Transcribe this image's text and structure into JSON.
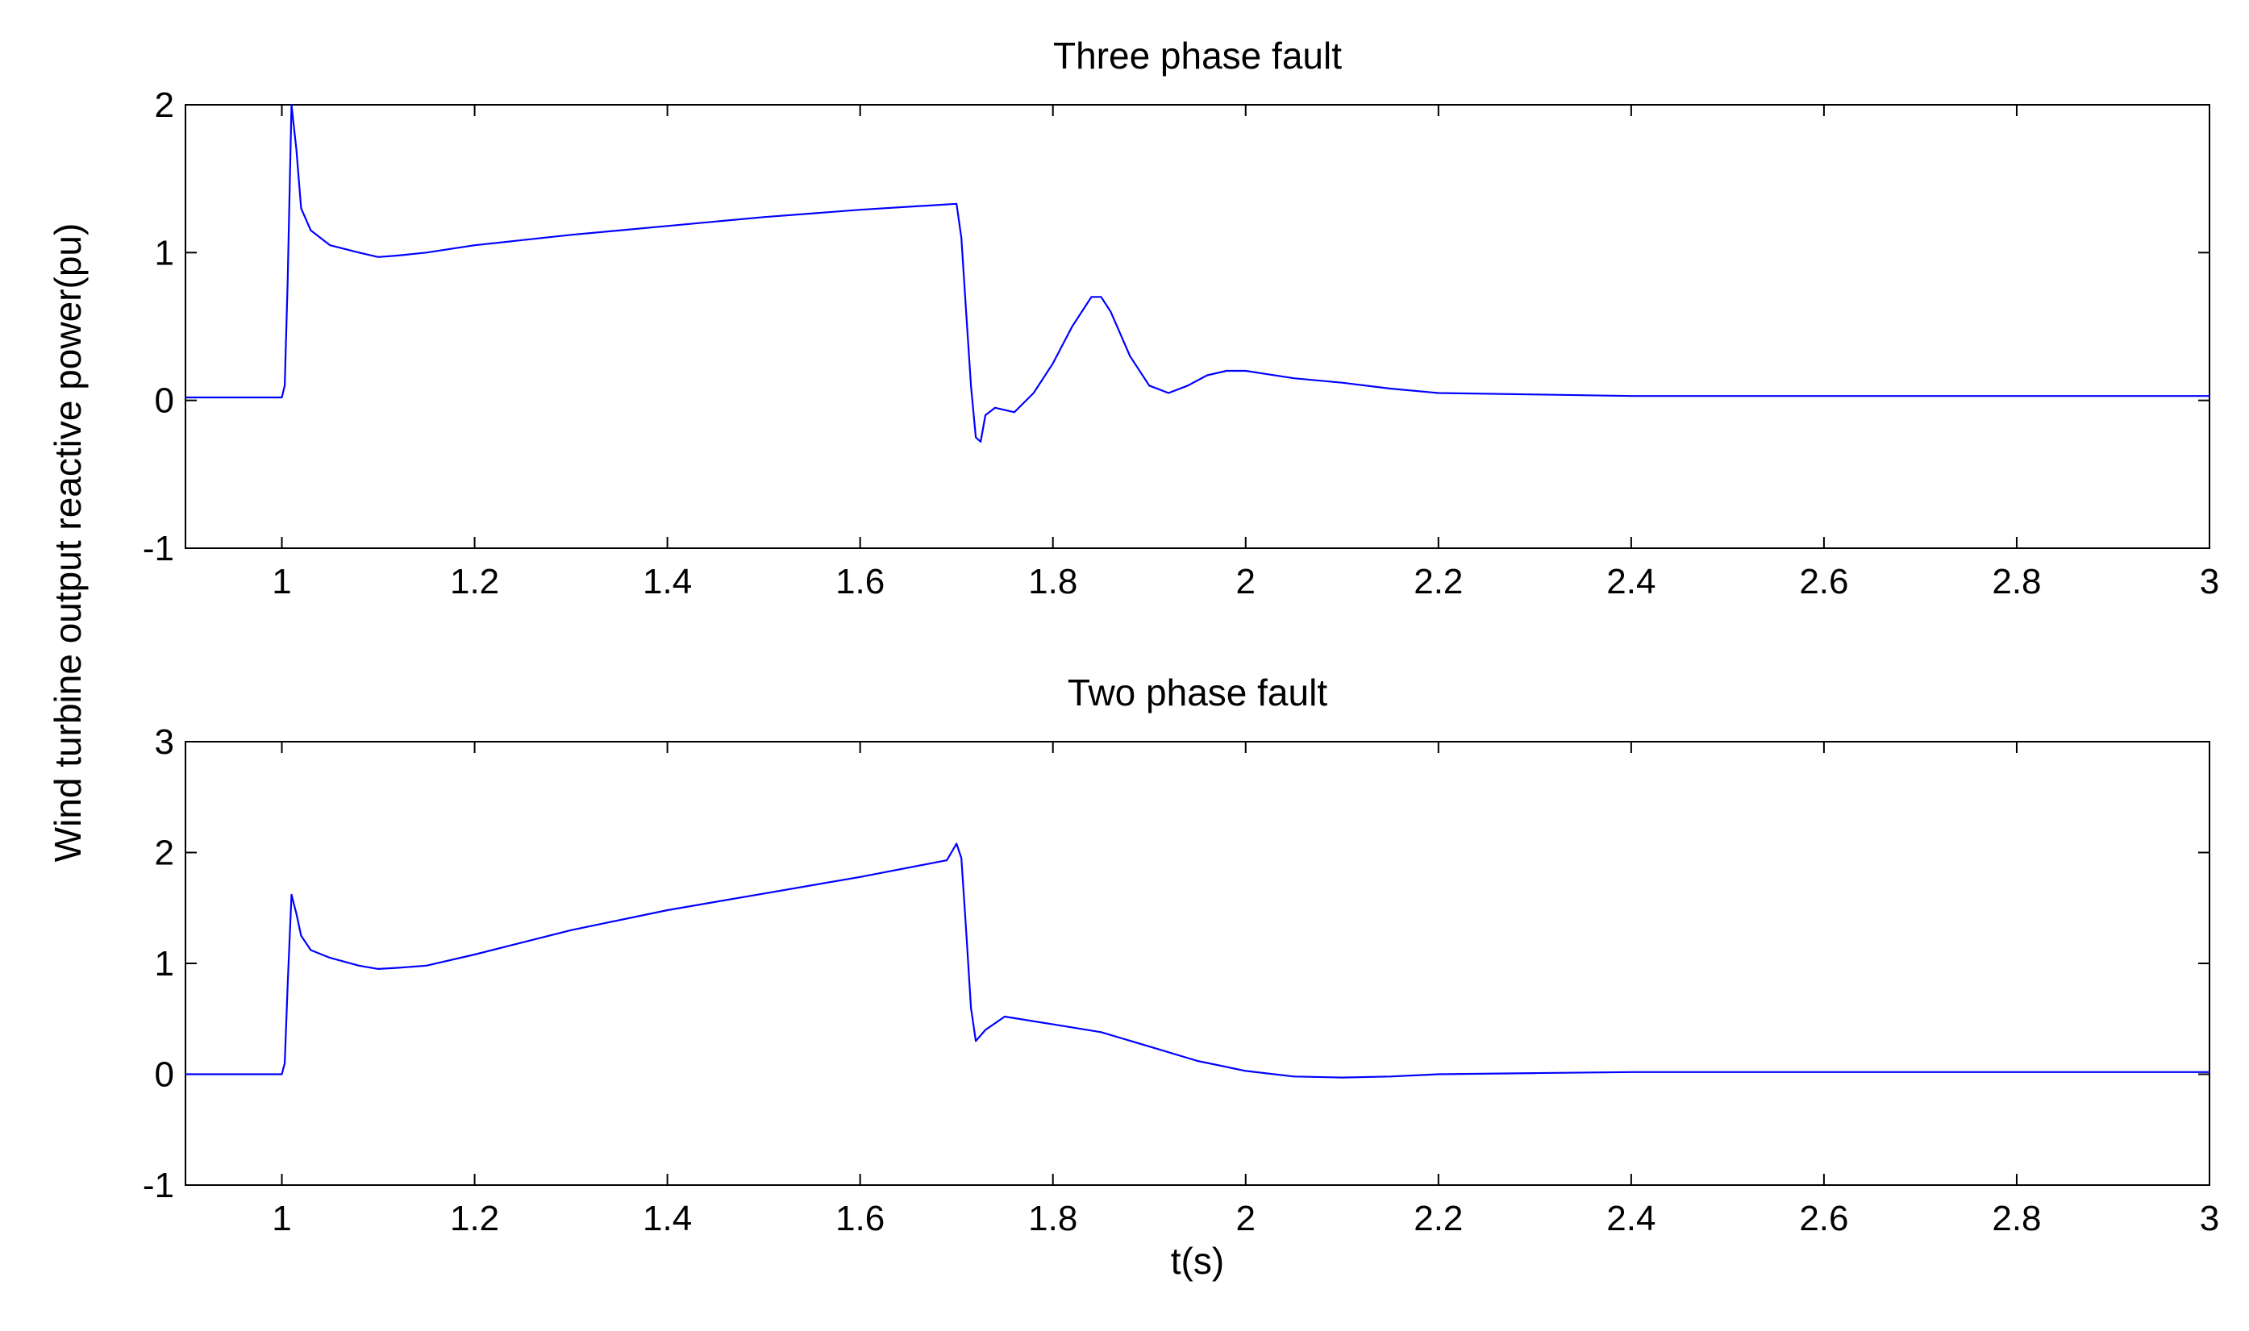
{
  "colors": {
    "series": "#0000ff",
    "axes": "#000000",
    "background": "#ffffff"
  },
  "ylabel": "Wind turbine output reactive power(pu)",
  "xlabel": "t(s)",
  "chart_data": [
    {
      "type": "line",
      "title": "Three phase fault",
      "xlim": [
        0.9,
        3.0
      ],
      "ylim": [
        -1,
        2
      ],
      "xticks": [
        1,
        1.2,
        1.4,
        1.6,
        1.8,
        2,
        2.2,
        2.4,
        2.6,
        2.8,
        3
      ],
      "xtick_labels": [
        "1",
        "1.2",
        "1.4",
        "1.6",
        "1.8",
        "2",
        "2.2",
        "2.4",
        "2.6",
        "2.8",
        "3"
      ],
      "yticks": [
        -1,
        0,
        1,
        2
      ],
      "ytick_labels": [
        "-1",
        "0",
        "1",
        "2"
      ],
      "grid": false,
      "series": [
        {
          "x": [
            0.9,
            1.0,
            1.003,
            1.006,
            1.01,
            1.015,
            1.02,
            1.03,
            1.05,
            1.08,
            1.1,
            1.12,
            1.15,
            1.2,
            1.3,
            1.4,
            1.5,
            1.6,
            1.7,
            1.705,
            1.71,
            1.715,
            1.72,
            1.725,
            1.73,
            1.74,
            1.76,
            1.78,
            1.8,
            1.82,
            1.84,
            1.85,
            1.86,
            1.88,
            1.9,
            1.92,
            1.94,
            1.96,
            1.98,
            2.0,
            2.02,
            2.05,
            2.1,
            2.15,
            2.2,
            2.3,
            2.4,
            2.5,
            2.7,
            3.0
          ],
          "y": [
            0.02,
            0.02,
            0.1,
            0.8,
            2.0,
            1.7,
            1.3,
            1.15,
            1.05,
            1.0,
            0.97,
            0.98,
            1.0,
            1.05,
            1.12,
            1.18,
            1.24,
            1.29,
            1.33,
            1.1,
            0.6,
            0.1,
            -0.25,
            -0.28,
            -0.1,
            -0.05,
            -0.08,
            0.05,
            0.25,
            0.5,
            0.7,
            0.7,
            0.6,
            0.3,
            0.1,
            0.05,
            0.1,
            0.17,
            0.2,
            0.2,
            0.18,
            0.15,
            0.12,
            0.08,
            0.05,
            0.04,
            0.03,
            0.03,
            0.03,
            0.03
          ]
        }
      ]
    },
    {
      "type": "line",
      "title": "Two phase fault",
      "xlim": [
        0.9,
        3.0
      ],
      "ylim": [
        -1,
        3
      ],
      "xticks": [
        1,
        1.2,
        1.4,
        1.6,
        1.8,
        2,
        2.2,
        2.4,
        2.6,
        2.8,
        3
      ],
      "xtick_labels": [
        "1",
        "1.2",
        "1.4",
        "1.6",
        "1.8",
        "2",
        "2.2",
        "2.4",
        "2.6",
        "2.8",
        "3"
      ],
      "yticks": [
        -1,
        0,
        1,
        2,
        3
      ],
      "ytick_labels": [
        "-1",
        "0",
        "1",
        "2",
        "3"
      ],
      "grid": false,
      "series": [
        {
          "x": [
            0.9,
            1.0,
            1.003,
            1.006,
            1.01,
            1.015,
            1.02,
            1.03,
            1.05,
            1.08,
            1.1,
            1.12,
            1.15,
            1.2,
            1.3,
            1.4,
            1.5,
            1.6,
            1.69,
            1.7,
            1.705,
            1.71,
            1.715,
            1.72,
            1.73,
            1.75,
            1.8,
            1.85,
            1.9,
            1.95,
            2.0,
            2.05,
            2.1,
            2.15,
            2.2,
            2.3,
            2.4,
            2.5,
            2.7,
            3.0
          ],
          "y": [
            0.0,
            0.0,
            0.1,
            0.8,
            1.62,
            1.45,
            1.25,
            1.12,
            1.05,
            0.98,
            0.95,
            0.96,
            0.98,
            1.08,
            1.3,
            1.48,
            1.63,
            1.78,
            1.93,
            2.08,
            1.95,
            1.3,
            0.6,
            0.3,
            0.4,
            0.52,
            0.45,
            0.38,
            0.25,
            0.12,
            0.03,
            -0.02,
            -0.03,
            -0.02,
            0.0,
            0.01,
            0.02,
            0.02,
            0.02,
            0.02
          ]
        }
      ]
    }
  ]
}
